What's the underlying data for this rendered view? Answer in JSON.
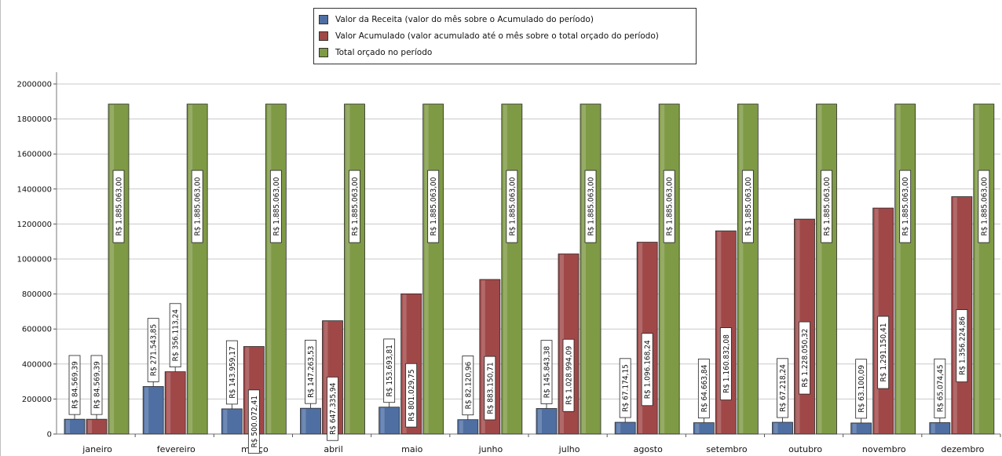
{
  "chart_data": {
    "type": "bar",
    "categories": [
      "janeiro",
      "fevereiro",
      "março",
      "abril",
      "maio",
      "junho",
      "julho",
      "agosto",
      "setembro",
      "outubro",
      "novembro",
      "dezembro"
    ],
    "series": [
      {
        "name": "Valor da Receita (valor do mês sobre o Acumulado do período)",
        "color": "#4f6fa3",
        "values": [
          84569.39,
          271543.85,
          143959.17,
          147263.53,
          153693.81,
          82120.96,
          145843.38,
          67174.15,
          64663.84,
          67218.24,
          63100.09,
          65074.45
        ],
        "labels": [
          "R$ 84.569,39",
          "R$ 271.543,85",
          "R$ 143.959,17",
          "R$ 147.263,53",
          "R$ 153.693,81",
          "R$ 82.120,96",
          "R$ 145.843,38",
          "R$ 67.174,15",
          "R$ 64.663,84",
          "R$ 67.218,24",
          "R$ 63.100,09",
          "R$ 65.074,45"
        ]
      },
      {
        "name": "Valor Acumulado (valor acumulado até o mês sobre o total orçado do período)",
        "color": "#a04848",
        "values": [
          84569.39,
          356113.24,
          500072.41,
          647335.94,
          801029.75,
          883150.71,
          1028994.09,
          1096168.24,
          1160832.08,
          1228050.32,
          1291150.41,
          1356224.86
        ],
        "labels": [
          "R$ 84.569,39",
          "R$ 356.113,24",
          "R$ 500.072,41",
          "R$ 647.335,94",
          "R$ 801.029,75",
          "R$ 883.150,71",
          "R$ 1.028.994,09",
          "R$ 1.096.168,24",
          "R$ 1.160.832,08",
          "R$ 1.228.050,32",
          "R$ 1.291.150,41",
          "R$ 1.356.224,86"
        ]
      },
      {
        "name": "Total orçado no período",
        "color": "#7f9a45",
        "values": [
          1885063,
          1885063,
          1885063,
          1885063,
          1885063,
          1885063,
          1885063,
          1885063,
          1885063,
          1885063,
          1885063,
          1885063
        ],
        "labels": [
          "R$ 1.885.063,00",
          "R$ 1.885.063,00",
          "R$ 1.885.063,00",
          "R$ 1.885.063,00",
          "R$ 1.885.063,00",
          "R$ 1.885.063,00",
          "R$ 1.885.063,00",
          "R$ 1.885.063,00",
          "R$ 1.885.063,00",
          "R$ 1.885.063,00",
          "R$ 1.885.063,00",
          "R$ 1.885.063,00"
        ]
      }
    ],
    "ylim": [
      0,
      2000000
    ],
    "yticks": [
      "0",
      "200000",
      "400000",
      "600000",
      "800000",
      "1000000",
      "1200000",
      "1400000",
      "1600000",
      "1800000",
      "2000000"
    ],
    "grid": true,
    "legend_position": "top-center"
  }
}
